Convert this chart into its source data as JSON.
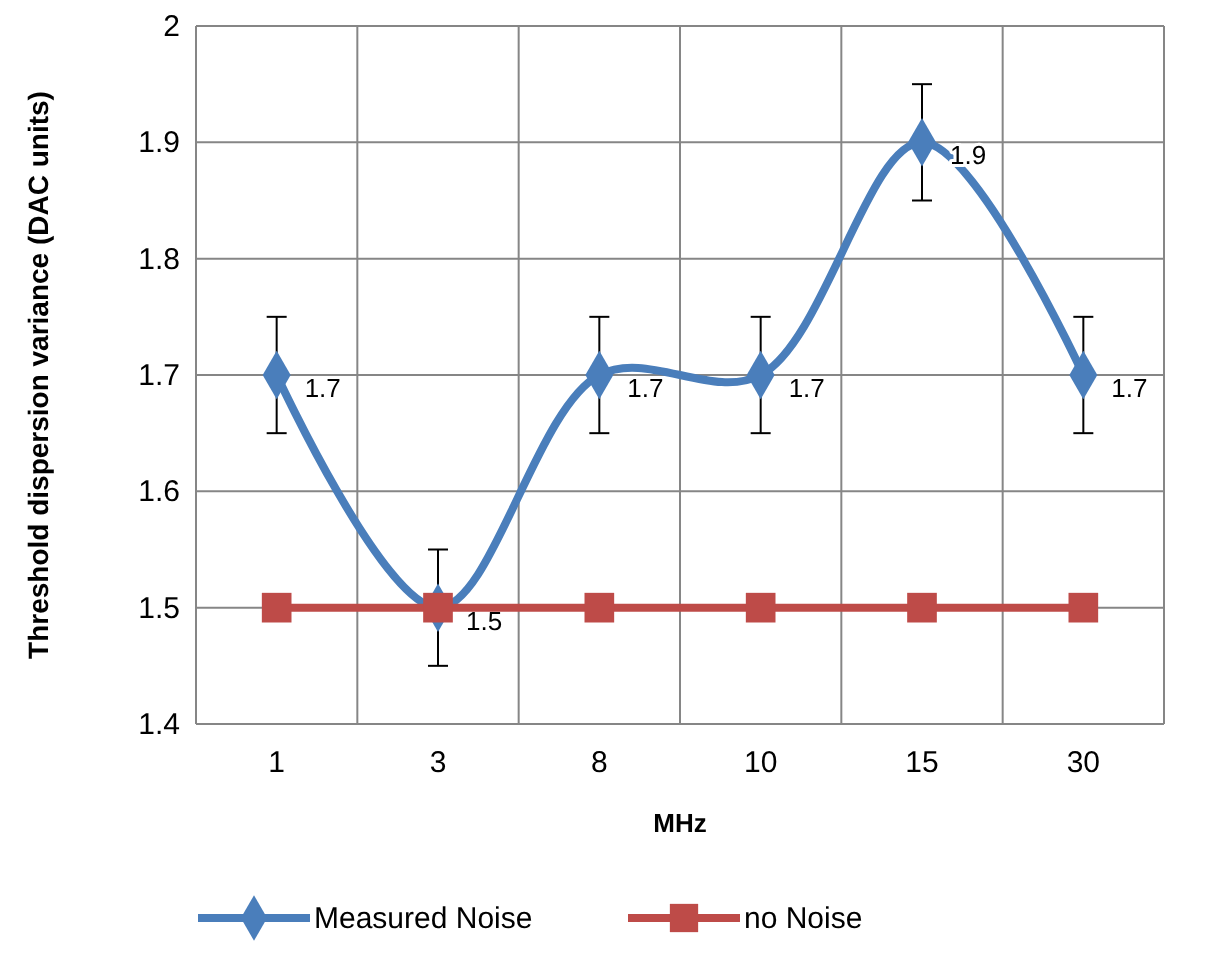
{
  "chart_data": {
    "type": "line",
    "xlabel": "MHz",
    "ylabel": "Threshold dispersion variance (DAC units)",
    "categories": [
      "1",
      "3",
      "8",
      "10",
      "15",
      "30"
    ],
    "ylim": [
      1.4,
      2
    ],
    "yticks": [
      1.4,
      1.5,
      1.6,
      1.7,
      1.8,
      1.9,
      2
    ],
    "grid": true,
    "legend": "bottom",
    "series": [
      {
        "name": "Measured Noise",
        "color": "#4a7ebb",
        "marker": "diamond",
        "values": [
          1.7,
          1.5,
          1.7,
          1.7,
          1.9,
          1.7
        ],
        "errors": [
          0.05,
          0.05,
          0.05,
          0.05,
          0.05,
          0.05
        ],
        "value_labels": [
          "1.7",
          "1.5",
          "1.7",
          "1.7",
          "1.9",
          "1.7"
        ]
      },
      {
        "name": "no Noise",
        "color": "#be4b48",
        "marker": "square",
        "values": [
          1.5,
          1.5,
          1.5,
          1.5,
          1.5,
          1.5
        ]
      }
    ]
  }
}
